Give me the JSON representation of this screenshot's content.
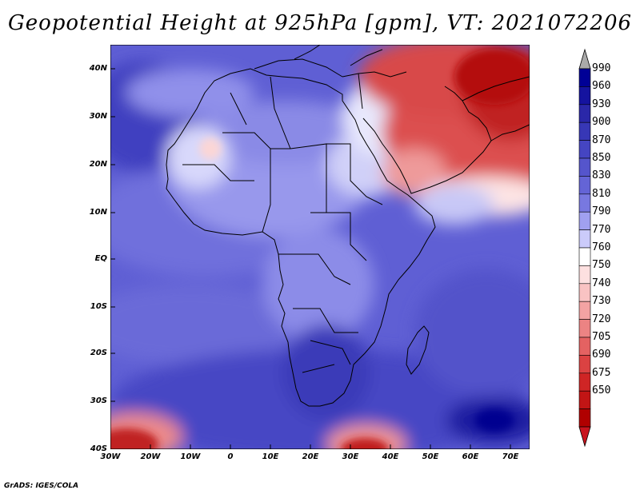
{
  "title": "Geopotential Height at 925hPa [gpm], VT: 2021072206",
  "credit": "GrADS: IGES/COLA",
  "map": {
    "variable": "Geopotential Height",
    "level": "925hPa",
    "units": "gpm",
    "valid_time": "2021072206",
    "lat_labels": [
      "40N",
      "30N",
      "20N",
      "10N",
      "EQ",
      "10S",
      "20S",
      "30S",
      "40S"
    ],
    "lon_labels": [
      "30W",
      "20W",
      "10W",
      "0",
      "10E",
      "20E",
      "30E",
      "40E",
      "50E",
      "60E",
      "70E"
    ]
  },
  "colorbar": {
    "levels": [
      "990",
      "960",
      "930",
      "900",
      "870",
      "850",
      "830",
      "810",
      "790",
      "770",
      "760",
      "750",
      "740",
      "730",
      "720",
      "705",
      "690",
      "675",
      "650"
    ],
    "colors": [
      "#000096",
      "#15139f",
      "#2a27a8",
      "#3737b6",
      "#4545c2",
      "#5555cc",
      "#6464d6",
      "#7878e0",
      "#a0a0f0",
      "#cbcbfa",
      "#ffffff",
      "#fde0e0",
      "#f9c3c3",
      "#f3a3a3",
      "#ec8383",
      "#e46262",
      "#db4242",
      "#cf2525",
      "#c21515",
      "#b00000"
    ],
    "top_arrow_color": "#a9a9a9",
    "bottom_arrow_color": "#c8141e"
  }
}
